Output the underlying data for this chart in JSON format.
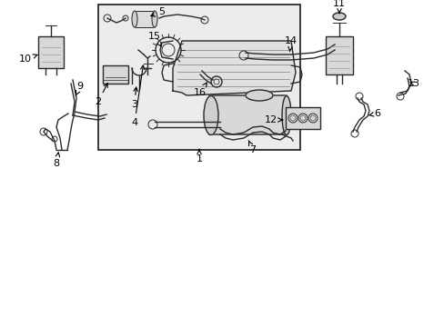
{
  "bg_color": "#ffffff",
  "line_color": "#2a2a2a",
  "box_color": "#e8e8e8",
  "fig_w": 4.89,
  "fig_h": 3.6,
  "dpi": 100
}
